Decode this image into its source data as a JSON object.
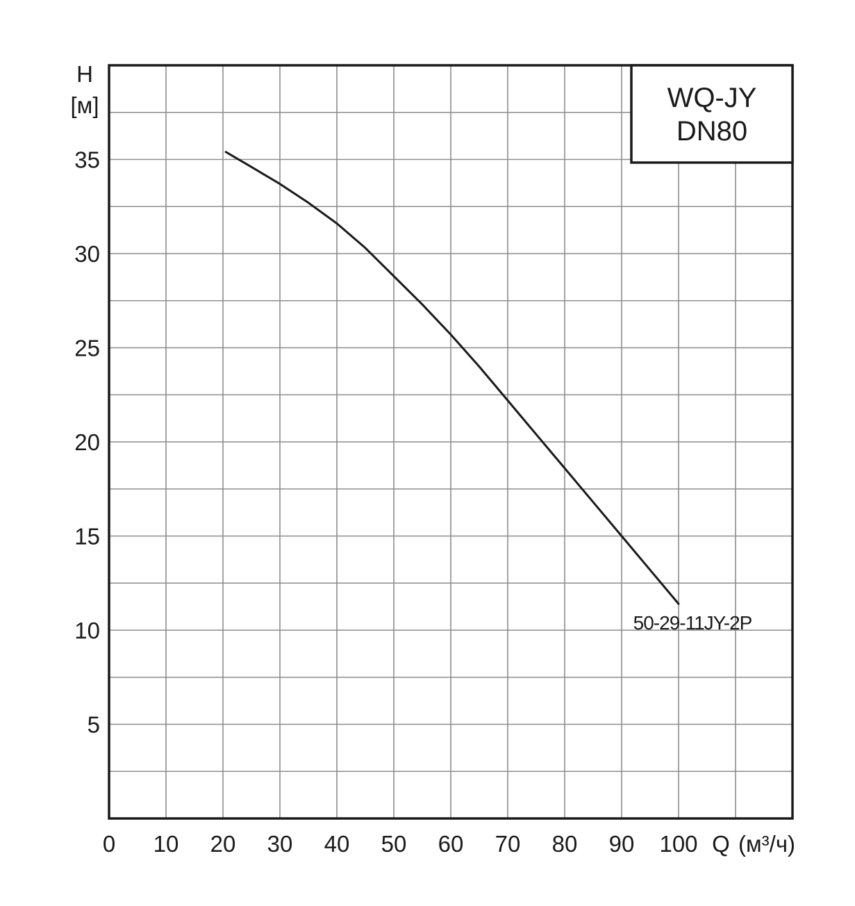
{
  "model_box": {
    "line1": "WQ-JY",
    "line2": "DN80"
  },
  "y_axis": {
    "symbol": "H",
    "unit": "[м]"
  },
  "x_axis": {
    "symbol": "Q",
    "unit": "(м³/ч)"
  },
  "chart_data": {
    "type": "line",
    "title": "",
    "xlabel": "Q (м³/ч)",
    "ylabel": "H [м]",
    "xlim": [
      0,
      120
    ],
    "ylim": [
      0,
      40
    ],
    "x_ticks": [
      0,
      10,
      20,
      30,
      40,
      50,
      60,
      70,
      80,
      90,
      100
    ],
    "y_ticks": [
      5,
      10,
      15,
      20,
      25,
      30,
      35
    ],
    "x_grid_step": 10,
    "y_grid_step": 2.5,
    "grid": true,
    "series": [
      {
        "name": "50-29-11JY-2P",
        "color": "#1a1a1a",
        "x": [
          20.5,
          25,
          30,
          35,
          40,
          45,
          50,
          55,
          60,
          65,
          70,
          75,
          80,
          85,
          90,
          95,
          100
        ],
        "y": [
          35.4,
          34.6,
          33.7,
          32.7,
          31.6,
          30.3,
          28.8,
          27.3,
          25.7,
          24.0,
          22.2,
          20.4,
          18.6,
          16.8,
          15.0,
          13.2,
          11.4
        ]
      }
    ]
  }
}
